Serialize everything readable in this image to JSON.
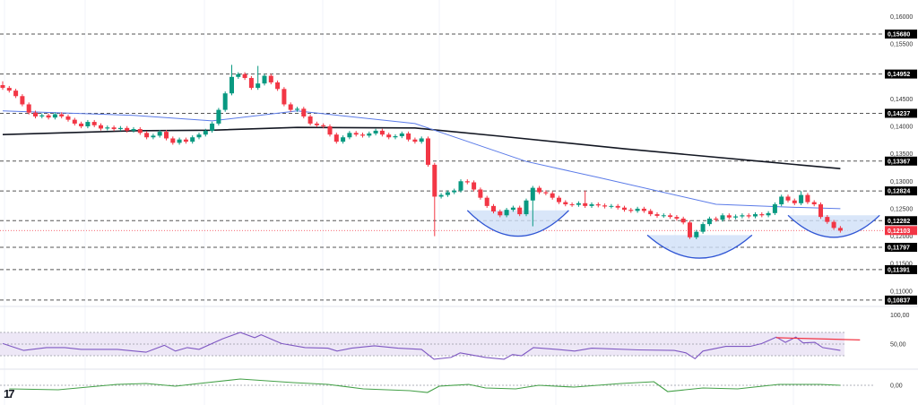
{
  "chart_data": {
    "type": "candlestick",
    "price_axis": {
      "ticks": [
        "0,16000",
        "0,15500",
        "0,14500",
        "0,14000",
        "0,13500",
        "0,13000",
        "0,12500",
        "0,12000",
        "0,11500",
        "0,11000"
      ],
      "tick_values": [
        0.16,
        0.155,
        0.145,
        0.14,
        0.135,
        0.13,
        0.125,
        0.12,
        0.115,
        0.11
      ]
    },
    "levels": [
      {
        "value": 0.1568,
        "label": "0,15680"
      },
      {
        "value": 0.14952,
        "label": "0,14952"
      },
      {
        "value": 0.14237,
        "label": "0,14237"
      },
      {
        "value": 0.13367,
        "label": "0,13367"
      },
      {
        "value": 0.12824,
        "label": "0,12824"
      },
      {
        "value": 0.12282,
        "label": "0,12282"
      },
      {
        "value": 0.11797,
        "label": "0,11797"
      },
      {
        "value": 0.11391,
        "label": "0,11391"
      },
      {
        "value": 0.10837,
        "label": "0,10837"
      }
    ],
    "current_price": {
      "value": 0.12103,
      "label": "0,12103"
    },
    "first_open": 0.1475,
    "closes": [
      0.147,
      0.1465,
      0.1455,
      0.144,
      0.1425,
      0.1418,
      0.142,
      0.1416,
      0.1422,
      0.1418,
      0.1412,
      0.1405,
      0.14,
      0.1408,
      0.1402,
      0.1396,
      0.1398,
      0.1395,
      0.1397,
      0.1392,
      0.1395,
      0.1388,
      0.138,
      0.1383,
      0.139,
      0.1378,
      0.137,
      0.1376,
      0.1372,
      0.138,
      0.1385,
      0.1392,
      0.1405,
      0.143,
      0.146,
      0.149,
      0.1495,
      0.1488,
      0.147,
      0.1478,
      0.1492,
      0.148,
      0.1468,
      0.144,
      0.143,
      0.1432,
      0.1418,
      0.1405,
      0.1402,
      0.14,
      0.1385,
      0.1372,
      0.138,
      0.1388,
      0.1385,
      0.1383,
      0.1387,
      0.1392,
      0.1385,
      0.138,
      0.1382,
      0.1387,
      0.1376,
      0.1372,
      0.1378,
      0.133,
      0.1272,
      0.1275,
      0.128,
      0.1283,
      0.13,
      0.1298,
      0.1285,
      0.127,
      0.1255,
      0.1245,
      0.1238,
      0.1248,
      0.1252,
      0.124,
      0.1265,
      0.1288,
      0.128,
      0.1278,
      0.127,
      0.1262,
      0.1258,
      0.1257,
      0.126,
      0.1255,
      0.1258,
      0.1256,
      0.1254,
      0.1255,
      0.1252,
      0.1248,
      0.1246,
      0.125,
      0.1246,
      0.124,
      0.1237,
      0.1238,
      0.1235,
      0.1232,
      0.1225,
      0.1198,
      0.1208,
      0.1222,
      0.1232,
      0.123,
      0.1238,
      0.1234,
      0.1236,
      0.1238,
      0.1236,
      0.124,
      0.1238,
      0.1242,
      0.1258,
      0.1272,
      0.1265,
      0.126,
      0.1275,
      0.1262,
      0.1258,
      0.1235,
      0.1226,
      0.1215,
      0.121
    ],
    "long_wicks": [
      {
        "index": 35,
        "high": 0.1512
      },
      {
        "index": 39,
        "high": 0.151
      },
      {
        "index": 66,
        "low": 0.12
      },
      {
        "index": 81,
        "low": 0.1218
      },
      {
        "index": 89,
        "high": 0.1283
      },
      {
        "index": 105,
        "low": 0.1195
      },
      {
        "index": 122,
        "high": 0.1282
      },
      {
        "index": 0,
        "high": 0.1482
      }
    ],
    "ma_fast": [
      [
        0,
        0.1428
      ],
      [
        20,
        0.142
      ],
      [
        32,
        0.141
      ],
      [
        45,
        0.1428
      ],
      [
        63,
        0.1405
      ],
      [
        80,
        0.1336
      ],
      [
        91,
        0.1307
      ],
      [
        109,
        0.1258
      ],
      [
        120,
        0.1253
      ],
      [
        128,
        0.125
      ]
    ],
    "ma_slow": [
      [
        0,
        0.1385
      ],
      [
        20,
        0.1392
      ],
      [
        32,
        0.1393
      ],
      [
        45,
        0.1398
      ],
      [
        63,
        0.1397
      ],
      [
        76,
        0.1382
      ],
      [
        95,
        0.1359
      ],
      [
        116,
        0.1336
      ],
      [
        128,
        0.1323
      ]
    ],
    "cups": [
      {
        "start": 71,
        "end": 86.5,
        "top": 0.1247,
        "bottom": 0.12
      },
      {
        "start": 98.5,
        "end": 114.5,
        "top": 0.1202,
        "bottom": 0.116
      },
      {
        "start": 120,
        "end": 134,
        "top": 0.1238,
        "bottom": 0.1198
      }
    ],
    "colors": {
      "up": "#089981",
      "down": "#f23645",
      "ma_fast": "#5b7be8",
      "ma_slow": "#131722",
      "level": "#555555",
      "cup_fill": "#cfe0f7",
      "cup_line": "#2f55d4",
      "rsi": "#7e57c2",
      "rsi_band": "#ede7f6",
      "trendline": "#f23645",
      "oscillator": "#43a047",
      "price_label": "#f23645"
    },
    "rsi": {
      "ticks": [
        "100,00",
        "50,00"
      ],
      "band": [
        30,
        70
      ],
      "values": [
        [
          0,
          51
        ],
        [
          3.2,
          39
        ],
        [
          6.7,
          44
        ],
        [
          9.5,
          44
        ],
        [
          12,
          41
        ],
        [
          17.5,
          41
        ],
        [
          21.9,
          36
        ],
        [
          24.7,
          48
        ],
        [
          26.4,
          38
        ],
        [
          28.2,
          44
        ],
        [
          30,
          41
        ],
        [
          33.6,
          59
        ],
        [
          36.3,
          70
        ],
        [
          38.5,
          61
        ],
        [
          39.5,
          66
        ],
        [
          42.6,
          51
        ],
        [
          46.2,
          44
        ],
        [
          49.7,
          43
        ],
        [
          51.1,
          38
        ],
        [
          53.3,
          43
        ],
        [
          56.8,
          47
        ],
        [
          60.4,
          43
        ],
        [
          64,
          41
        ],
        [
          65.9,
          24
        ],
        [
          68.5,
          27
        ],
        [
          69.9,
          35
        ],
        [
          73.8,
          27
        ],
        [
          76.6,
          24
        ],
        [
          77.9,
          32
        ],
        [
          79.3,
          30
        ],
        [
          81.1,
          44
        ],
        [
          84.7,
          41
        ],
        [
          87.4,
          38
        ],
        [
          90,
          43
        ],
        [
          97.1,
          40
        ],
        [
          102.6,
          39
        ],
        [
          104.4,
          35
        ],
        [
          105.8,
          25
        ],
        [
          107,
          38
        ],
        [
          110.5,
          46
        ],
        [
          114.2,
          46
        ],
        [
          116,
          51
        ],
        [
          118.2,
          62
        ],
        [
          119.6,
          53
        ],
        [
          121.2,
          62
        ],
        [
          122.3,
          52
        ],
        [
          124.1,
          53
        ],
        [
          125.3,
          44
        ],
        [
          128,
          39
        ]
      ],
      "trendline": [
        [
          118.2,
          61
        ],
        [
          131,
          57
        ]
      ]
    },
    "oscillator": {
      "ticks": [
        "0,00"
      ],
      "values": [
        [
          1,
          -0.002
        ],
        [
          8.5,
          -0.0025
        ],
        [
          17.5,
          0.0005
        ],
        [
          21.9,
          0.001
        ],
        [
          26.4,
          -0.0005
        ],
        [
          30,
          0.001
        ],
        [
          36.3,
          0.0035
        ],
        [
          44.4,
          0.0015
        ],
        [
          49.7,
          0.0005
        ],
        [
          55.1,
          -0.002
        ],
        [
          62.2,
          -0.003
        ],
        [
          64.9,
          -0.004
        ],
        [
          66.7,
          -0.0005
        ],
        [
          71.2,
          0.0005
        ],
        [
          73.8,
          -0.0015
        ],
        [
          78.4,
          -0.002
        ],
        [
          81.9,
          0
        ],
        [
          87.3,
          -0.001
        ],
        [
          94.5,
          0.001
        ],
        [
          99.5,
          0.002
        ],
        [
          101.6,
          -0.0035
        ],
        [
          107,
          -0.0015
        ],
        [
          112.3,
          -0.002
        ],
        [
          118.6,
          0.0005
        ],
        [
          124.9,
          0.0005
        ],
        [
          128,
          0
        ]
      ]
    },
    "logo": "17"
  }
}
